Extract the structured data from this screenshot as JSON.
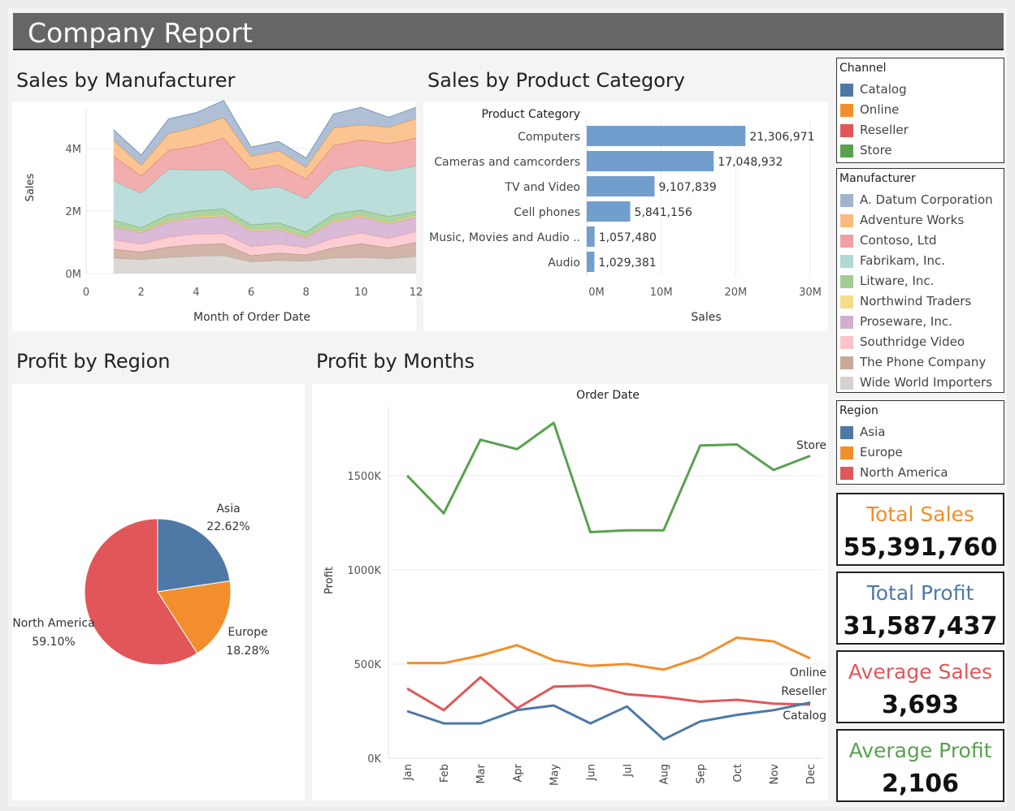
{
  "header": {
    "title": "Company Report"
  },
  "sections": {
    "manufacturer": "Sales by Manufacturer",
    "category": "Sales by Product Category",
    "region": "Profit by Region",
    "months": "Profit by Months"
  },
  "legends": {
    "channel": {
      "title": "Channel",
      "items": [
        {
          "label": "Catalog",
          "color": "#4e79a7"
        },
        {
          "label": "Online",
          "color": "#f28e2b"
        },
        {
          "label": "Reseller",
          "color": "#e15759"
        },
        {
          "label": "Store",
          "color": "#59a14f"
        }
      ]
    },
    "manufacturer": {
      "title": "Manufacturer",
      "items": [
        {
          "label": "A. Datum Corporation",
          "color": "#a0b4cf"
        },
        {
          "label": "Adventure Works",
          "color": "#f9bb7f"
        },
        {
          "label": "Contoso, Ltd",
          "color": "#f0a0a0"
        },
        {
          "label": "Fabrikam, Inc.",
          "color": "#b0d8d5"
        },
        {
          "label": "Litware, Inc.",
          "color": "#9fcd92"
        },
        {
          "label": "Northwind Traders",
          "color": "#f5dc8a"
        },
        {
          "label": "Proseware, Inc.",
          "color": "#d4aed0"
        },
        {
          "label": "Southridge Video",
          "color": "#fcc4ca"
        },
        {
          "label": "The Phone Company",
          "color": "#c9a898"
        },
        {
          "label": "Wide World Importers",
          "color": "#d6d1ce"
        }
      ]
    },
    "region": {
      "title": "Region",
      "items": [
        {
          "label": "Asia",
          "color": "#4e79a7"
        },
        {
          "label": "Europe",
          "color": "#f28e2b"
        },
        {
          "label": "North America",
          "color": "#e15759"
        }
      ]
    }
  },
  "kpis": [
    {
      "label": "Total Sales",
      "value": "55,391,760",
      "color": "#f28e2b"
    },
    {
      "label": "Total Profit",
      "value": "31,587,437",
      "color": "#4e79a7"
    },
    {
      "label": "Average Sales",
      "value": "3,693",
      "color": "#e15759"
    },
    {
      "label": "Average Profit",
      "value": "2,106",
      "color": "#59a14f"
    }
  ],
  "chart_data": [
    {
      "id": "sales-by-manufacturer",
      "type": "area",
      "title": "Sales by Manufacturer",
      "xlabel": "Month of Order Date",
      "ylabel": "Sales",
      "x": [
        1,
        2,
        3,
        4,
        5,
        6,
        7,
        8,
        9,
        10,
        11,
        12
      ],
      "xticks": [
        "0",
        "2",
        "4",
        "6",
        "8",
        "10",
        "12"
      ],
      "xlim": [
        0,
        12
      ],
      "yticks": [
        "0M",
        "2M",
        "4M"
      ],
      "ylim": [
        0,
        5300000
      ],
      "stacked": true,
      "series": [
        {
          "name": "Wide World Importers",
          "color": "#d6d1ce",
          "stroke": "#b8b0ab",
          "values": [
            500000,
            450000,
            520000,
            560000,
            580000,
            380000,
            420000,
            400000,
            500000,
            520000,
            480000,
            550000
          ]
        },
        {
          "name": "The Phone Company",
          "color": "#c9a898",
          "stroke": "#b08a79",
          "values": [
            280000,
            240000,
            330000,
            370000,
            370000,
            200000,
            240000,
            200000,
            330000,
            440000,
            350000,
            450000
          ]
        },
        {
          "name": "Southridge Video",
          "color": "#fcc4ca",
          "stroke": "#f2a3ab",
          "values": [
            300000,
            250000,
            320000,
            340000,
            330000,
            280000,
            290000,
            230000,
            300000,
            340000,
            290000,
            350000
          ]
        },
        {
          "name": "Proseware, Inc.",
          "color": "#d4aed0",
          "stroke": "#bb8fb6",
          "values": [
            400000,
            370000,
            480000,
            520000,
            550000,
            500000,
            450000,
            330000,
            520000,
            520000,
            470000,
            460000
          ]
        },
        {
          "name": "Northwind Traders",
          "color": "#f5dc8a",
          "stroke": "#e9c84e",
          "values": [
            30000,
            30000,
            40000,
            40000,
            40000,
            40000,
            40000,
            30000,
            40000,
            40000,
            40000,
            50000
          ]
        },
        {
          "name": "Litware, Inc.",
          "color": "#9fcd92",
          "stroke": "#72b062",
          "values": [
            200000,
            130000,
            200000,
            180000,
            200000,
            160000,
            190000,
            140000,
            210000,
            180000,
            200000,
            130000
          ]
        },
        {
          "name": "Fabrikam, Inc.",
          "color": "#b0d8d5",
          "stroke": "#86c0bb",
          "values": [
            1250000,
            1100000,
            1450000,
            1300000,
            1250000,
            1120000,
            1150000,
            1070000,
            1400000,
            1420000,
            1450000,
            1450000
          ]
        },
        {
          "name": "Contoso, Ltd",
          "color": "#f0a0a0",
          "stroke": "#e07878",
          "values": [
            800000,
            550000,
            600000,
            780000,
            1010000,
            650000,
            700000,
            630000,
            800000,
            820000,
            880000,
            900000
          ]
        },
        {
          "name": "Adventure Works",
          "color": "#f9bb7f",
          "stroke": "#f29a3e",
          "values": [
            500000,
            350000,
            540000,
            600000,
            660000,
            420000,
            450000,
            370000,
            560000,
            480000,
            520000,
            620000
          ]
        },
        {
          "name": "A. Datum Corporation",
          "color": "#a0b4cf",
          "stroke": "#7f99ba",
          "values": [
            340000,
            320000,
            470000,
            460000,
            550000,
            300000,
            300000,
            300000,
            450000,
            560000,
            320000,
            360000
          ]
        }
      ]
    },
    {
      "id": "sales-by-product-category",
      "type": "bar",
      "title": "Sales by Product Category",
      "header": "Product Category",
      "xlabel": "Sales",
      "xlim": [
        0,
        30000000
      ],
      "xticks": [
        "0M",
        "10M",
        "20M",
        "30M"
      ],
      "categories": [
        "Computers",
        "Cameras and camcorders",
        "TV and Video",
        "Cell phones",
        "Music, Movies and Audio ..",
        "Audio"
      ],
      "values": [
        21306971,
        17048932,
        9107839,
        5841156,
        1057480,
        1029381
      ],
      "labels": [
        "21,306,971",
        "17,048,932",
        "9,107,839",
        "5,841,156",
        "1,057,480",
        "1,029,381"
      ],
      "color": "#729ece"
    },
    {
      "id": "profit-by-region",
      "type": "pie",
      "title": "Profit by Region",
      "slices": [
        {
          "name": "Asia",
          "pct_label": "22.62%",
          "value": 22.62,
          "color": "#4e79a7"
        },
        {
          "name": "Europe",
          "pct_label": "18.28%",
          "value": 18.28,
          "color": "#f28e2b"
        },
        {
          "name": "North America",
          "pct_label": "59.10%",
          "value": 59.1,
          "color": "#e15759"
        }
      ]
    },
    {
      "id": "profit-by-months",
      "type": "line",
      "title": "Profit by Months",
      "header": "Order Date",
      "ylabel": "Profit",
      "categories": [
        "Jan",
        "Feb",
        "Mar",
        "Apr",
        "May",
        "Jun",
        "Jul",
        "Aug",
        "Sep",
        "Oct",
        "Nov",
        "Dec"
      ],
      "yticks": [
        "0K",
        "500K",
        "1000K",
        "1500K"
      ],
      "ylim": [
        0,
        1900000
      ],
      "series": [
        {
          "name": "Store",
          "color": "#59a14f",
          "values": [
            1500000,
            1300000,
            1690000,
            1640000,
            1780000,
            1200000,
            1210000,
            1210000,
            1660000,
            1665000,
            1530000,
            1605000
          ]
        },
        {
          "name": "Online",
          "color": "#f28e2b",
          "values": [
            505000,
            505000,
            545000,
            600000,
            520000,
            490000,
            500000,
            470000,
            535000,
            640000,
            620000,
            530000
          ]
        },
        {
          "name": "Reseller",
          "color": "#e15759",
          "values": [
            370000,
            255000,
            430000,
            265000,
            380000,
            385000,
            340000,
            325000,
            300000,
            310000,
            290000,
            285000
          ]
        },
        {
          "name": "Catalog",
          "color": "#4e79a7",
          "values": [
            250000,
            185000,
            185000,
            255000,
            280000,
            185000,
            275000,
            100000,
            195000,
            230000,
            255000,
            295000
          ]
        }
      ]
    }
  ]
}
